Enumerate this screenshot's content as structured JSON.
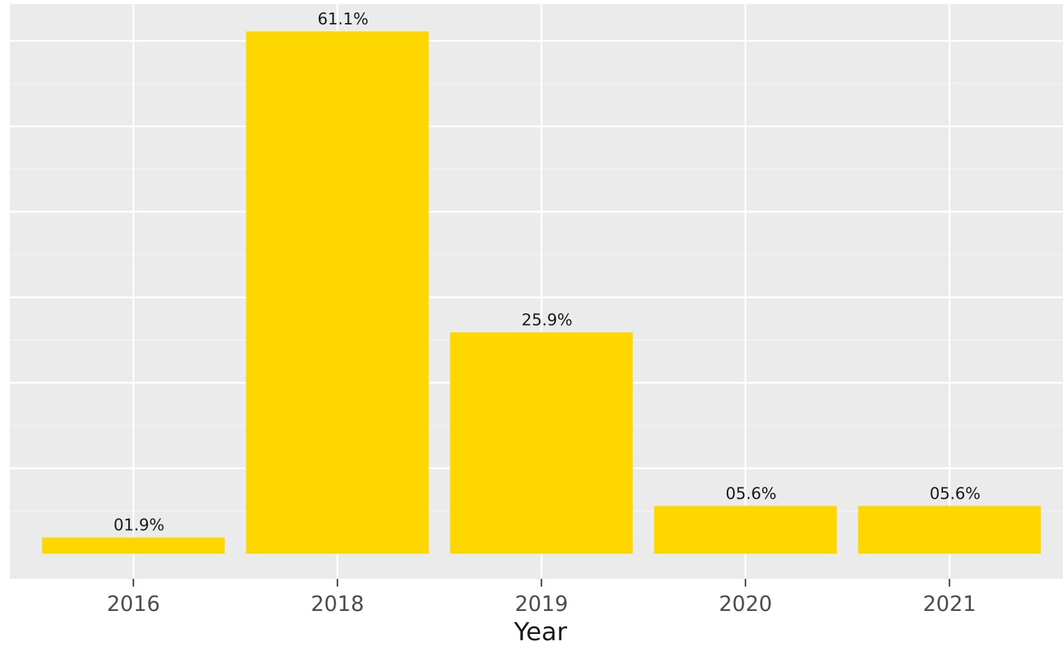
{
  "chart_data": {
    "type": "bar",
    "title": "",
    "xlabel": "Year",
    "ylabel": "",
    "categories": [
      "2016",
      "2018",
      "2019",
      "2020",
      "2021"
    ],
    "values": [
      1.9,
      61.1,
      25.9,
      5.6,
      5.6
    ],
    "data_labels": [
      "01.9%",
      "61.1%",
      "25.9%",
      "05.6%",
      "05.6%"
    ],
    "ylim": [
      0,
      67
    ],
    "y_gridlines": [
      10,
      20,
      30,
      40,
      50,
      60
    ],
    "grid": true,
    "legend": "none",
    "colors": {
      "bar": "#FFD700",
      "panel_background": "#EBEBEB",
      "gridline": "#FFFFFF",
      "tick_label": "#4D4D4D",
      "label_text": "#1A1A1A"
    }
  }
}
